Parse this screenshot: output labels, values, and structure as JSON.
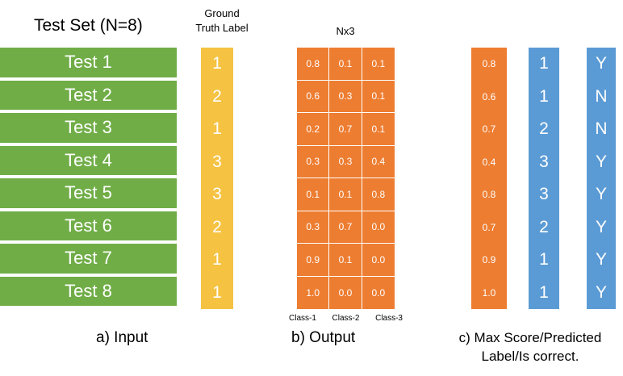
{
  "input": {
    "title": "Test Set (N=8)",
    "tests": [
      "Test 1",
      "Test 2",
      "Test 3",
      "Test 4",
      "Test 5",
      "Test 6",
      "Test 7",
      "Test 8"
    ],
    "caption": "a) Input"
  },
  "ground_truth": {
    "header_line1": "Ground",
    "header_line2": "Truth Label",
    "labels": [
      "1",
      "2",
      "1",
      "3",
      "3",
      "2",
      "1",
      "1"
    ]
  },
  "output": {
    "header": "Nx3",
    "rows": [
      [
        "0.8",
        "0.1",
        "0.1"
      ],
      [
        "0.6",
        "0.3",
        "0.1"
      ],
      [
        "0.2",
        "0.7",
        "0.1"
      ],
      [
        "0.3",
        "0.3",
        "0.4"
      ],
      [
        "0.1",
        "0.1",
        "0.8"
      ],
      [
        "0.3",
        "0.7",
        "0.0"
      ],
      [
        "0.9",
        "0.1",
        "0.0"
      ],
      [
        "1.0",
        "0.0",
        "0.0"
      ]
    ],
    "class_labels": [
      "Class-1",
      "Class-2",
      "Class-3"
    ],
    "caption": "b) Output"
  },
  "result": {
    "max_scores": [
      "0.8",
      "0.6",
      "0.7",
      "0.4",
      "0.8",
      "0.7",
      "0.9",
      "1.0"
    ],
    "predicted": [
      "1",
      "1",
      "2",
      "3",
      "3",
      "2",
      "1",
      "1"
    ],
    "correct": [
      "Y",
      "N",
      "N",
      "Y",
      "Y",
      "Y",
      "Y",
      "Y"
    ],
    "caption_line1": "c) Max Score/Predicted",
    "caption_line2": "Label/Is correct."
  },
  "colors": {
    "test_green": "#70ad47",
    "truth_yellow": "#f5c242",
    "score_orange": "#ed7d31",
    "pred_blue": "#5b9bd5"
  }
}
